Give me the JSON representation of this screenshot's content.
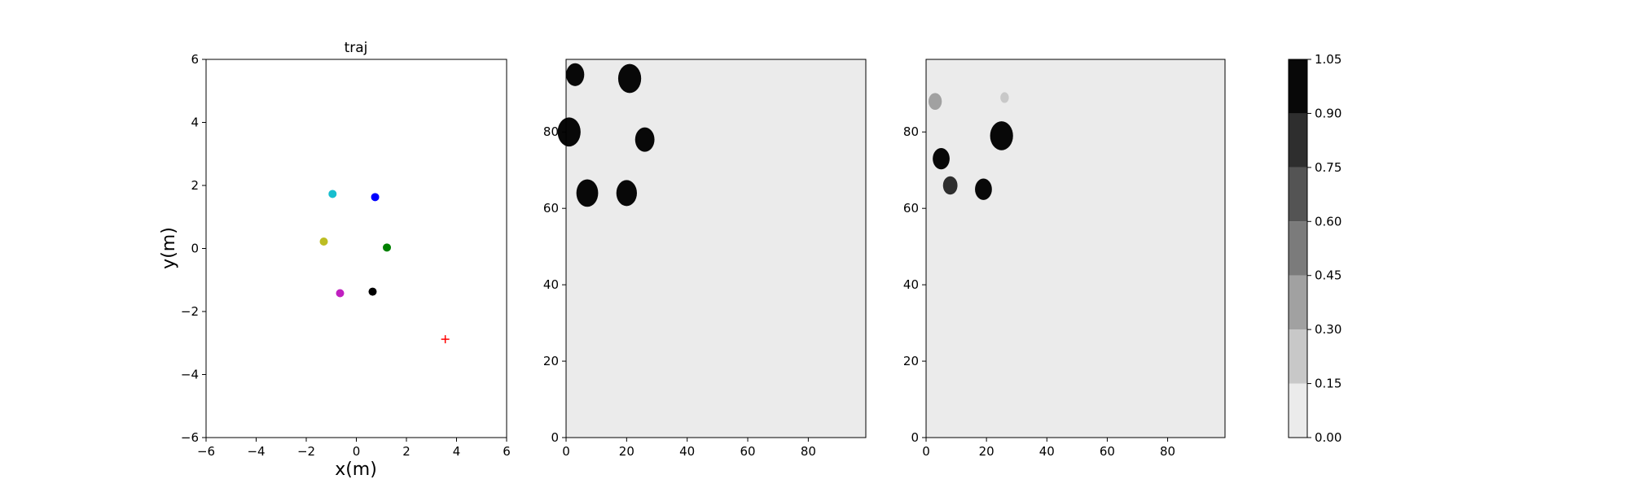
{
  "chart_data": [
    {
      "type": "scatter",
      "title": "traj",
      "xlabel": "x(m)",
      "ylabel": "y(m)",
      "xlim": [
        -6,
        6
      ],
      "ylim": [
        -6,
        6
      ],
      "xticks": [
        -6,
        -4,
        -2,
        0,
        2,
        4,
        6
      ],
      "yticks": [
        -6,
        -4,
        -2,
        0,
        2,
        4,
        6
      ],
      "grid": false,
      "points": [
        {
          "x": -0.95,
          "y": 1.73,
          "color": "#17becf",
          "marker": "dot"
        },
        {
          "x": 0.75,
          "y": 1.63,
          "color": "#0000ff",
          "marker": "dot"
        },
        {
          "x": -1.3,
          "y": 0.22,
          "color": "#bcbd22",
          "marker": "dot"
        },
        {
          "x": 1.22,
          "y": 0.03,
          "color": "#008000",
          "marker": "dot"
        },
        {
          "x": -0.65,
          "y": -1.42,
          "color": "#c020c0",
          "marker": "dot"
        },
        {
          "x": 0.65,
          "y": -1.37,
          "color": "#000000",
          "marker": "dot"
        },
        {
          "x": 3.55,
          "y": -2.88,
          "color": "#ff0000",
          "marker": "plus"
        }
      ]
    },
    {
      "type": "heatmap",
      "title": "",
      "xlim": [
        0,
        99
      ],
      "ylim": [
        0,
        99
      ],
      "xticks": [
        0,
        20,
        40,
        60,
        80
      ],
      "yticks": [
        0,
        20,
        40,
        60,
        80
      ],
      "background_level": 0.0,
      "blobs": [
        {
          "x": 3,
          "y": 95,
          "r": 3,
          "level": 1.0
        },
        {
          "x": 21,
          "y": 94,
          "r": 3.8,
          "level": 1.0
        },
        {
          "x": 1,
          "y": 80,
          "r": 3.8,
          "level": 1.0
        },
        {
          "x": 26,
          "y": 78,
          "r": 3.2,
          "level": 1.0
        },
        {
          "x": 7,
          "y": 64,
          "r": 3.6,
          "level": 1.0
        },
        {
          "x": 20,
          "y": 64,
          "r": 3.4,
          "level": 1.0
        }
      ]
    },
    {
      "type": "heatmap",
      "title": "",
      "xlim": [
        0,
        99
      ],
      "ylim": [
        0,
        99
      ],
      "xticks": [
        0,
        20,
        40,
        60,
        80
      ],
      "yticks": [
        0,
        20,
        40,
        60,
        80
      ],
      "background_level": 0.0,
      "blobs": [
        {
          "x": 3,
          "y": 88,
          "r": 2.2,
          "level": 0.35
        },
        {
          "x": 26,
          "y": 89,
          "r": 1.4,
          "level": 0.25
        },
        {
          "x": 25,
          "y": 79,
          "r": 3.8,
          "level": 1.0
        },
        {
          "x": 5,
          "y": 73,
          "r": 2.8,
          "level": 1.0
        },
        {
          "x": 8,
          "y": 66,
          "r": 2.4,
          "level": 0.8
        },
        {
          "x": 19,
          "y": 65,
          "r": 2.8,
          "level": 1.0
        }
      ]
    },
    {
      "type": "colorbar",
      "levels": [
        0.0,
        0.15,
        0.3,
        0.45,
        0.6,
        0.75,
        0.9,
        1.05
      ],
      "tick_labels": [
        "0.00",
        "0.15",
        "0.30",
        "0.45",
        "0.60",
        "0.75",
        "0.90",
        "1.05"
      ],
      "colors": [
        "#ebebeb",
        "#c8c8c8",
        "#a1a1a1",
        "#7b7b7b",
        "#545454",
        "#2e2e2e",
        "#080808"
      ]
    }
  ]
}
